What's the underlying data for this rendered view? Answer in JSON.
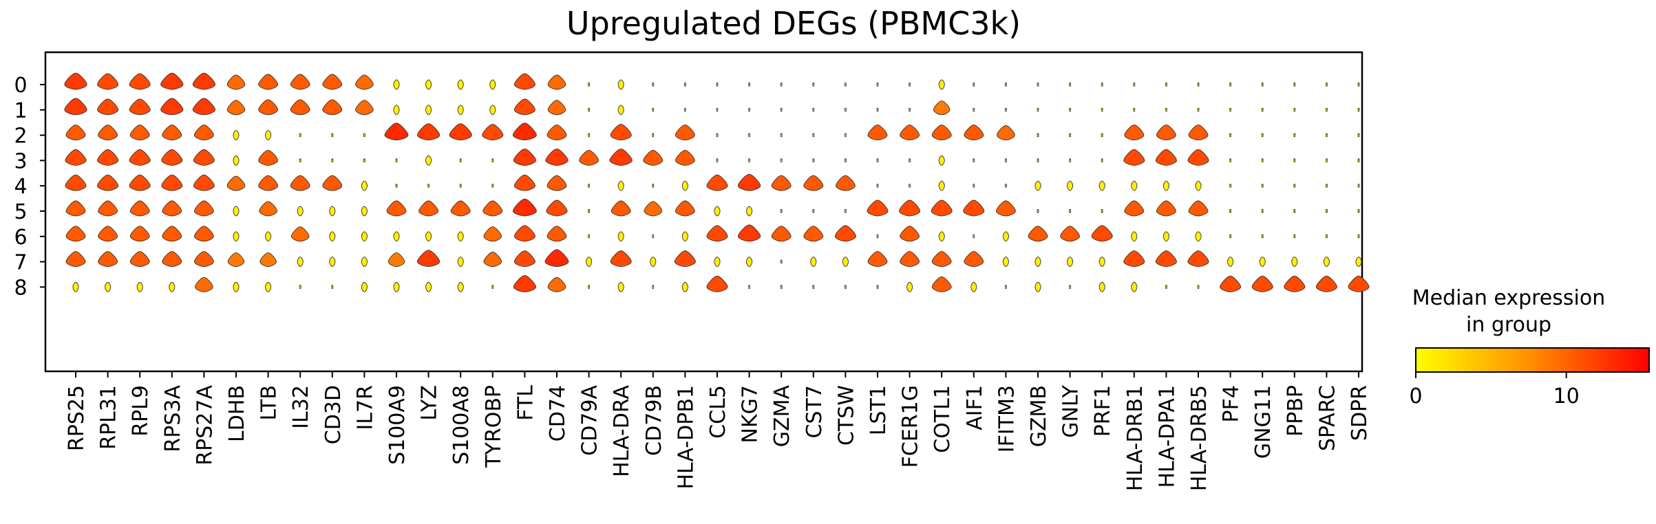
{
  "chart_data": {
    "type": "stacked-violin",
    "title": "Upregulated DEGs (PBMC3k)",
    "groups": [
      "0",
      "1",
      "2",
      "3",
      "4",
      "5",
      "6",
      "7",
      "8"
    ],
    "genes": [
      "RPS25",
      "RPL31",
      "RPL9",
      "RPS3A",
      "RPS27A",
      "LDHB",
      "LTB",
      "IL32",
      "CD3D",
      "IL7R",
      "S100A9",
      "LYZ",
      "S100A8",
      "TYROBP",
      "FTL",
      "CD74",
      "CD79A",
      "HLA-DRA",
      "CD79B",
      "HLA-DPB1",
      "CCL5",
      "NKG7",
      "GZMA",
      "CST7",
      "CTSW",
      "LST1",
      "FCER1G",
      "COTL1",
      "AIF1",
      "IFITM3",
      "GZMB",
      "GNLY",
      "PRF1",
      "HLA-DRB1",
      "HLA-DPA1",
      "HLA-DRB5",
      "PF4",
      "GNG11",
      "PPBP",
      "SPARC",
      "SDPR"
    ],
    "median_expression": [
      [
        12,
        11,
        11,
        12,
        12,
        9,
        10,
        10,
        10,
        9,
        1,
        1,
        1,
        1,
        11,
        9,
        0,
        1,
        0,
        0,
        0,
        0,
        0,
        0,
        0,
        0,
        0,
        1,
        0,
        0,
        0,
        0,
        0,
        0,
        0,
        0,
        0,
        0,
        0,
        0,
        0
      ],
      [
        12,
        11,
        11,
        12,
        12,
        9,
        10,
        10,
        10,
        9,
        1,
        1,
        1,
        1,
        11,
        9,
        0,
        1,
        0,
        0,
        0,
        0,
        0,
        0,
        0,
        0,
        0,
        8,
        0,
        0,
        0,
        0,
        0,
        0,
        0,
        0,
        0,
        0,
        0,
        0,
        0
      ],
      [
        10,
        10,
        10,
        10,
        10,
        1,
        1,
        0,
        0,
        0,
        13,
        12,
        12,
        11,
        13,
        10,
        0,
        11,
        0,
        10,
        0,
        0,
        0,
        0,
        0,
        10,
        10,
        10,
        10,
        9,
        0,
        0,
        0,
        10,
        10,
        10,
        0,
        0,
        0,
        0,
        0
      ],
      [
        11,
        11,
        11,
        11,
        11,
        1,
        10,
        0,
        0,
        0,
        0,
        1,
        0,
        0,
        12,
        12,
        10,
        12,
        10,
        10,
        0,
        0,
        0,
        0,
        0,
        0,
        0,
        1,
        0,
        0,
        0,
        0,
        0,
        11,
        11,
        11,
        0,
        0,
        0,
        0,
        0
      ],
      [
        11,
        11,
        11,
        11,
        11,
        9,
        10,
        10,
        10,
        1,
        0,
        0,
        0,
        0,
        11,
        10,
        0,
        1,
        0,
        1,
        11,
        12,
        10,
        10,
        10,
        0,
        0,
        1,
        0,
        0,
        1,
        1,
        1,
        1,
        1,
        1,
        0,
        0,
        0,
        0,
        0
      ],
      [
        10,
        10,
        10,
        10,
        10,
        1,
        9,
        1,
        1,
        1,
        10,
        10,
        10,
        10,
        13,
        11,
        0,
        10,
        9,
        10,
        1,
        1,
        0,
        0,
        0,
        11,
        11,
        11,
        11,
        10,
        0,
        0,
        0,
        10,
        10,
        10,
        0,
        0,
        0,
        0,
        0
      ],
      [
        10,
        10,
        10,
        10,
        10,
        1,
        1,
        9,
        1,
        1,
        1,
        1,
        1,
        9,
        11,
        10,
        0,
        1,
        0,
        1,
        11,
        12,
        10,
        10,
        11,
        0,
        10,
        1,
        0,
        1,
        10,
        10,
        11,
        1,
        1,
        1,
        0,
        0,
        0,
        0,
        0
      ],
      [
        10,
        10,
        10,
        10,
        10,
        8,
        8,
        1,
        1,
        1,
        8,
        12,
        1,
        9,
        11,
        13,
        1,
        11,
        1,
        11,
        1,
        1,
        0,
        1,
        1,
        10,
        10,
        10,
        10,
        1,
        1,
        1,
        1,
        11,
        11,
        11,
        1,
        1,
        1,
        1,
        1
      ],
      [
        1,
        1,
        1,
        1,
        9,
        1,
        1,
        0,
        0,
        1,
        1,
        1,
        1,
        0,
        12,
        9,
        0,
        1,
        0,
        1,
        11,
        0,
        0,
        0,
        0,
        0,
        1,
        10,
        1,
        0,
        1,
        0,
        1,
        1,
        0,
        0,
        11,
        11,
        11,
        11,
        11
      ]
    ],
    "colorbar": {
      "title_line1": "Median expression",
      "title_line2": "in group",
      "range": [
        0,
        15.5
      ],
      "ticks": [
        {
          "value": 0,
          "label": "0"
        },
        {
          "value": 10,
          "label": "10"
        }
      ],
      "colormap": [
        "#ffff00",
        "#ff0000"
      ]
    }
  }
}
